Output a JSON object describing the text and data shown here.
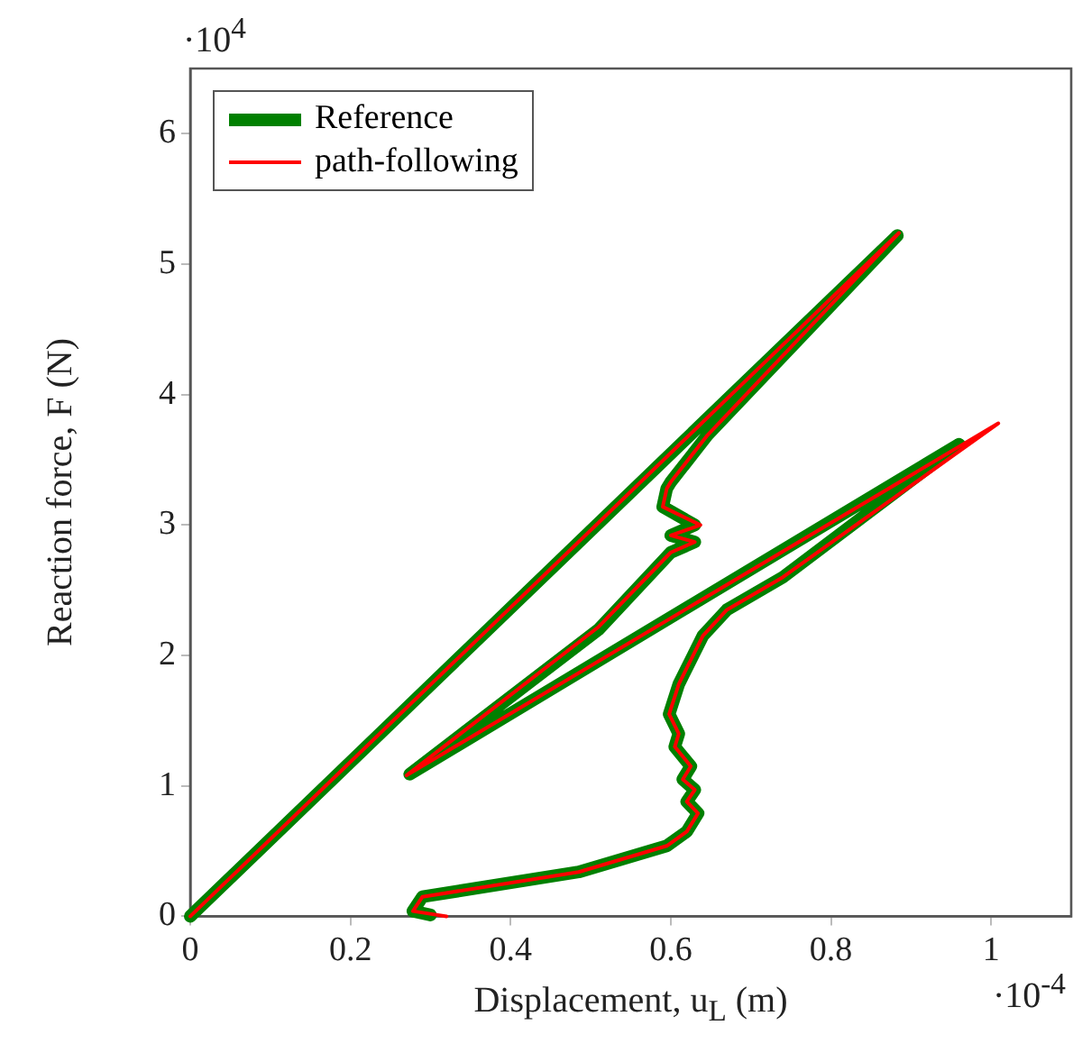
{
  "chart_data": {
    "type": "line",
    "xlabel": "Displacement, u$_{L}$ (m)",
    "ylabel": "Reaction force, F (N)",
    "xlim": [
      0,
      1.1
    ],
    "xticks": [
      0,
      0.2,
      0.4,
      0.6,
      0.8,
      1
    ],
    "ylim": [
      0,
      6.5
    ],
    "yticks": [
      0,
      1,
      2,
      3,
      4,
      5,
      6
    ],
    "legend": "top left",
    "marker": "none",
    "line_style": "solid",
    "annotations": [
      "·10$^{4}$",
      "·10$^{-4}$"
    ],
    "series": [
      {
        "name": "Reference",
        "color": "#008000",
        "x": [
          0,
          0.883,
          0.646,
          0.6,
          0.595,
          0.59,
          0.63,
          0.6,
          0.63,
          0.6,
          0.51,
          0.274,
          0.96,
          0.74,
          0.67,
          0.64,
          0.61,
          0.598,
          0.61,
          0.605,
          0.625,
          0.615,
          0.63,
          0.62,
          0.634,
          0.62,
          0.595,
          0.485,
          0.29,
          0.278,
          0.3
        ],
        "values": [
          0,
          5.22,
          3.69,
          3.33,
          3.28,
          3.14,
          3.0,
          2.92,
          2.87,
          2.79,
          2.2,
          1.09,
          3.62,
          2.6,
          2.35,
          2.15,
          1.78,
          1.55,
          1.4,
          1.3,
          1.15,
          1.05,
          0.97,
          0.88,
          0.79,
          0.65,
          0.54,
          0.34,
          0.15,
          0.04,
          0.01
        ]
      },
      {
        "name": "path-following",
        "color": "#ff0000",
        "x": [
          0,
          0.885,
          0.646,
          0.6,
          0.595,
          0.59,
          0.637,
          0.6,
          0.63,
          0.6,
          0.51,
          0.27,
          1.009,
          0.74,
          0.67,
          0.64,
          0.61,
          0.598,
          0.61,
          0.605,
          0.625,
          0.615,
          0.63,
          0.62,
          0.634,
          0.62,
          0.595,
          0.485,
          0.29,
          0.278,
          0.32
        ],
        "values": [
          0,
          5.24,
          3.69,
          3.33,
          3.28,
          3.14,
          3.0,
          2.92,
          2.87,
          2.79,
          2.22,
          1.08,
          3.78,
          2.6,
          2.35,
          2.15,
          1.78,
          1.55,
          1.4,
          1.3,
          1.15,
          1.05,
          0.97,
          0.88,
          0.79,
          0.65,
          0.54,
          0.34,
          0.15,
          0.04,
          0
        ]
      }
    ]
  }
}
